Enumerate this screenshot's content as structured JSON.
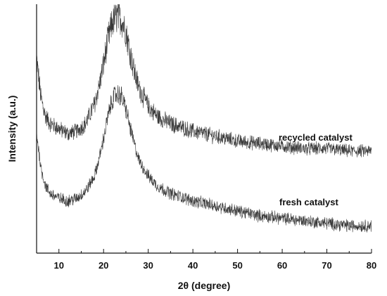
{
  "chart_data": {
    "type": "line",
    "title": "",
    "xlabel": "2θ (degree)",
    "ylabel": "Intensity (a.u.)",
    "xlim": [
      5,
      80
    ],
    "ylim": [
      0,
      100
    ],
    "x_ticks": [
      "10",
      "20",
      "30",
      "40",
      "50",
      "60",
      "70",
      "80"
    ],
    "y_ticks_shown": false,
    "grid": false,
    "line_color": "#222222",
    "series": [
      {
        "name": "recycled catalyst",
        "x": [
          5,
          6,
          7,
          8,
          10,
          12,
          14,
          16,
          18,
          19,
          20,
          21,
          22,
          23,
          24,
          25,
          26,
          27,
          28,
          30,
          32,
          35,
          40,
          45,
          50,
          55,
          60,
          65,
          70,
          75,
          80
        ],
        "y": [
          78,
          62,
          55,
          52,
          50,
          48,
          49,
          52,
          60,
          67,
          76,
          86,
          93,
          95,
          94,
          89,
          80,
          72,
          66,
          59,
          55,
          52,
          49,
          47,
          45,
          44,
          43,
          42,
          42,
          41,
          41
        ]
      },
      {
        "name": "fresh catalyst",
        "x": [
          5,
          6,
          7,
          8,
          10,
          12,
          14,
          16,
          18,
          19,
          20,
          21,
          22,
          23,
          24,
          25,
          26,
          27,
          28,
          30,
          32,
          35,
          40,
          45,
          50,
          55,
          60,
          65,
          70,
          75,
          80
        ],
        "y": [
          48,
          34,
          27,
          24,
          22,
          21,
          22,
          25,
          31,
          38,
          46,
          55,
          62,
          64,
          63,
          58,
          50,
          43,
          37,
          31,
          27,
          24,
          21,
          19,
          17,
          15,
          14,
          13,
          12,
          11,
          11
        ]
      }
    ]
  }
}
